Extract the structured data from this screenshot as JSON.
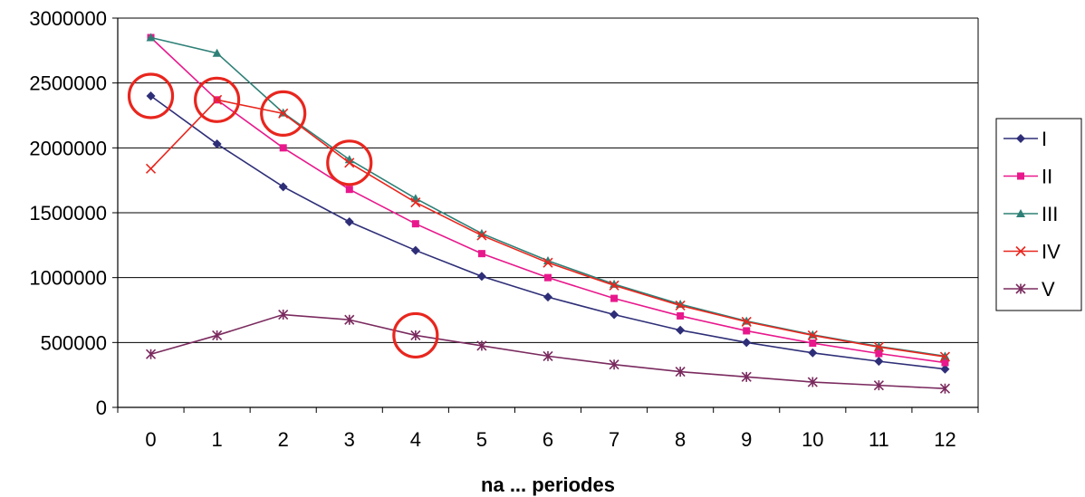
{
  "chart_data": {
    "type": "line",
    "title": "",
    "xlabel": "na ... periodes",
    "ylabel": "",
    "categories": [
      "0",
      "1",
      "2",
      "3",
      "4",
      "5",
      "6",
      "7",
      "8",
      "9",
      "10",
      "11",
      "12"
    ],
    "ylim": [
      0,
      3000000
    ],
    "yticks": [
      0,
      500000,
      1000000,
      1500000,
      2000000,
      2500000,
      3000000
    ],
    "ytick_labels": [
      "0",
      "500000",
      "1000000",
      "1500000",
      "2000000",
      "2500000",
      "3000000"
    ],
    "grid": "horizontal",
    "legend_position": "right",
    "series": [
      {
        "name": "I",
        "color": "#2E2E78",
        "marker": "diamond",
        "values": [
          2400000,
          2030000,
          1700000,
          1430000,
          1210000,
          1010000,
          850000,
          715000,
          595000,
          500000,
          420000,
          355000,
          295000
        ]
      },
      {
        "name": "II",
        "color": "#E8188C",
        "marker": "square",
        "values": [
          2850000,
          2370000,
          2000000,
          1680000,
          1415000,
          1185000,
          1000000,
          840000,
          705000,
          590000,
          495000,
          415000,
          345000
        ]
      },
      {
        "name": "III",
        "color": "#2E8077",
        "marker": "triangle",
        "values": [
          2850000,
          2730000,
          2270000,
          1910000,
          1610000,
          1340000,
          1130000,
          950000,
          795000,
          665000,
          560000,
          470000,
          395000
        ]
      },
      {
        "name": "IV",
        "color": "#E8261E",
        "marker": "x",
        "values": [
          1840000,
          2370000,
          2265000,
          1885000,
          1580000,
          1325000,
          1115000,
          940000,
          785000,
          660000,
          555000,
          465000,
          390000
        ]
      },
      {
        "name": "V",
        "color": "#7A2A5E",
        "marker": "star",
        "values": [
          410000,
          555000,
          715000,
          675000,
          555000,
          475000,
          395000,
          330000,
          275000,
          235000,
          195000,
          170000,
          145000
        ]
      }
    ],
    "annotations": [
      {
        "kind": "circle",
        "color": "#E8261E",
        "x": "0",
        "y": 2400000
      },
      {
        "kind": "circle",
        "color": "#E8261E",
        "x": "1",
        "y": 2370000
      },
      {
        "kind": "circle",
        "color": "#E8261E",
        "x": "2",
        "y": 2265000
      },
      {
        "kind": "circle",
        "color": "#E8261E",
        "x": "3",
        "y": 1885000
      },
      {
        "kind": "circle",
        "color": "#E8261E",
        "x": "4",
        "y": 555000
      }
    ]
  }
}
